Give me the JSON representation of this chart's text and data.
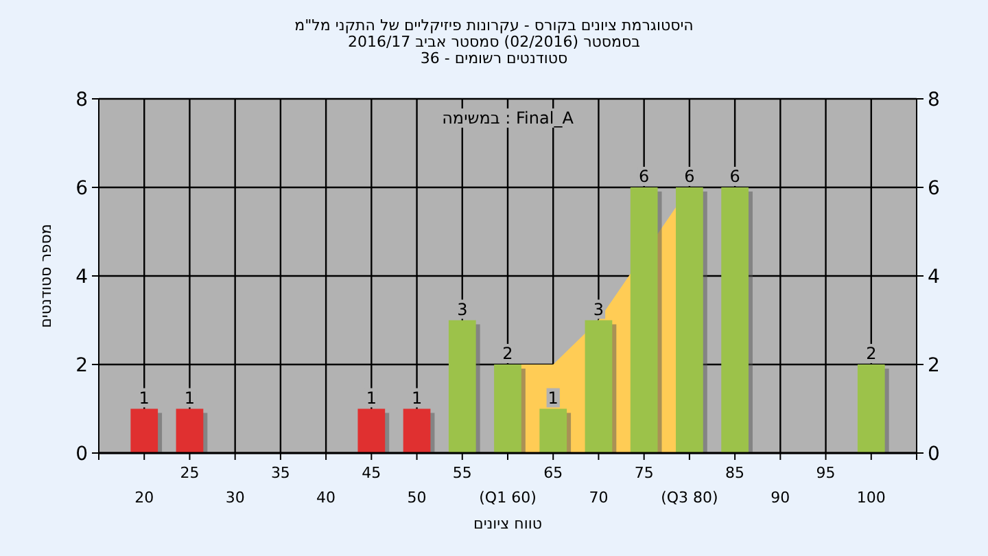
{
  "chart_data": {
    "type": "bar",
    "title": "היסטוגרמת ציונים בקורס - עקרונות פיזיקליים של התקני מל\"מ",
    "subtitle": "בסמסטר  (02/2016)  סמסטר אביב 2016/17\nסטודנטים רשומים - 36",
    "xlabel": "טווח ציונים",
    "ylabel": "מספר סטודנטים",
    "annotations": [
      "במשימה : Final_A"
    ],
    "categories": [
      "20",
      "25",
      "30",
      "35",
      "40",
      "45",
      "50",
      "55",
      "(Q1 60)",
      "65",
      "70",
      "75",
      "(Q3 80)",
      "85",
      "90",
      "95",
      "100"
    ],
    "series": [
      {
        "type": "area",
        "color": "#ffcc55",
        "values": [
          null,
          null,
          null,
          null,
          null,
          null,
          null,
          null,
          2,
          2,
          3,
          null,
          6,
          null,
          null,
          null,
          null
        ]
      },
      {
        "type": "bar",
        "colors": [
          "#e03030",
          "#e03030",
          "#e03030",
          "#e03030",
          "#e03030",
          "#e03030",
          "#e03030",
          "#9cc24a",
          "#9cc24a",
          "#9cc24a",
          "#9cc24a",
          "#9cc24a",
          "#9cc24a",
          "#9cc24a",
          "#9cc24a",
          "#9cc24a",
          "#9cc24a"
        ],
        "values": [
          1,
          1,
          0,
          0,
          0,
          1,
          1,
          3,
          2,
          1,
          3,
          6,
          6,
          6,
          0,
          0,
          2
        ],
        "value_labels": [
          "1",
          "1",
          null,
          null,
          null,
          "1",
          "1",
          "3",
          "2",
          "1",
          "3",
          "6",
          "6",
          "6",
          null,
          null,
          "2"
        ]
      }
    ],
    "ylim": [
      0,
      8
    ],
    "yticks": [
      0,
      2,
      4,
      6,
      8
    ],
    "y2lim": [
      0,
      8
    ],
    "y2ticks": [
      0,
      2,
      4,
      6,
      8
    ],
    "grid": true
  }
}
